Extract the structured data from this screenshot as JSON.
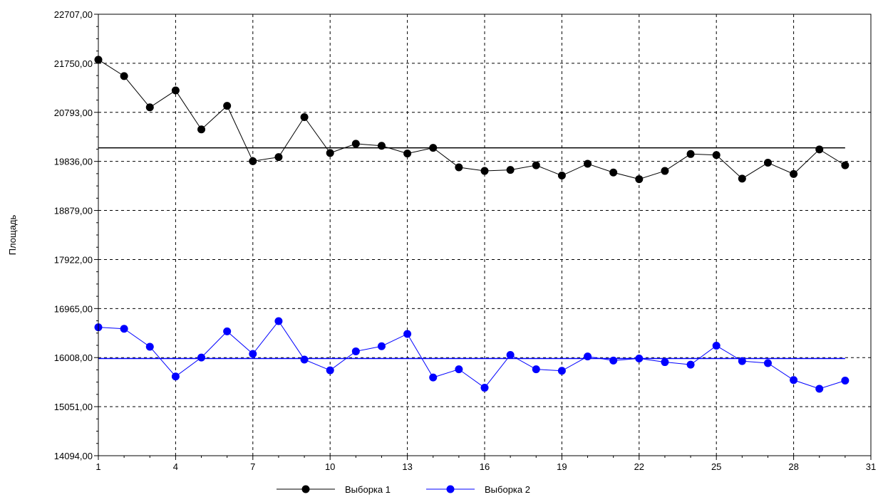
{
  "chart_data": {
    "type": "line",
    "title": "",
    "xlabel": "",
    "ylabel": "Площадь",
    "xlim": [
      1,
      31
    ],
    "ylim": [
      14094,
      22707
    ],
    "x_ticks": [
      "1",
      "4",
      "7",
      "10",
      "13",
      "16",
      "19",
      "22",
      "25",
      "28",
      "31"
    ],
    "y_ticks": [
      "14094,00",
      "15051,00",
      "16008,00",
      "16965,00",
      "17922,00",
      "18879,00",
      "19836,00",
      "20793,00",
      "21750,00",
      "22707,00"
    ],
    "grid": true,
    "legend_position": "bottom",
    "x": [
      1,
      2,
      3,
      4,
      5,
      6,
      7,
      8,
      9,
      10,
      11,
      12,
      13,
      14,
      15,
      16,
      17,
      18,
      19,
      20,
      21,
      22,
      23,
      24,
      25,
      26,
      27,
      28,
      29,
      30
    ],
    "series": [
      {
        "name": "Выборка 1",
        "color": "#000000",
        "marker": "circle",
        "values": [
          21820,
          21500,
          20890,
          21220,
          20460,
          20920,
          19840,
          19920,
          20700,
          20000,
          20180,
          20140,
          19990,
          20100,
          19720,
          19650,
          19670,
          19760,
          19560,
          19790,
          19620,
          19490,
          19650,
          19980,
          19960,
          19500,
          19810,
          19590,
          20070,
          19760
        ],
        "mean": 20100
      },
      {
        "name": "Выборка 2",
        "color": "#0000ff",
        "marker": "circle",
        "values": [
          16600,
          16570,
          16220,
          15640,
          16010,
          16520,
          16080,
          16720,
          15970,
          15760,
          16130,
          16230,
          16470,
          15620,
          15780,
          15420,
          16060,
          15780,
          15750,
          16030,
          15950,
          15990,
          15920,
          15870,
          16240,
          15940,
          15900,
          15570,
          15400,
          15560
        ],
        "mean": 15990
      }
    ]
  }
}
